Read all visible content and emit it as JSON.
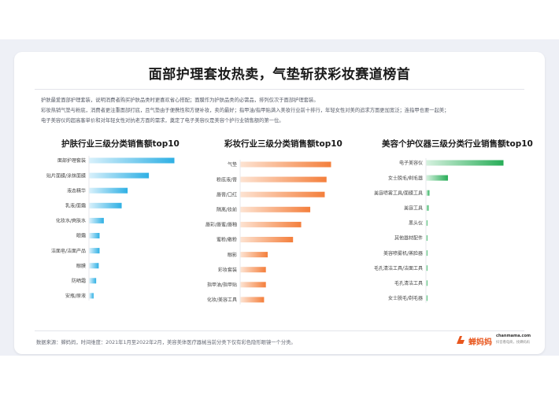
{
  "title": "面部护理套妆热卖，气垫斩获彩妆赛道榜首",
  "description": [
    "护肤最爱面部护理套装，说明消费者购买护肤品类时更喜欢省心搭配；面膜作为护肤品类的必需品，排列仅次于面部护理套装。",
    "彩妆热销气垫与粉底，消费者更注重面部打底，且气垫由于便携性和方便补妆，卖的最好；指甲油/指甲贴满入美妆行业前十排行，年轻女性对美的追求方面更加宽泛；连指甲也要一起美；",
    "电子美容仪的超高客单价和对年轻女性对抗老方面的需求，奠定了电子美容仪是美容个护行业销售额的第一位。"
  ],
  "source_note": "数据来源：蝉妈妈，时间维度：2021年1月至2022年2月，美容美体医疗器械当前分类下仅有彩色隐形眼镜一个分类。",
  "logo": {
    "name": "蝉妈妈",
    "site": "chanmama.com",
    "tagline": "抖音看电商，找蝉妈妈",
    "color": "#e8561d"
  },
  "chart_data": [
    {
      "type": "bar",
      "orientation": "horizontal",
      "title": "护肤行业三级分类销售额top10",
      "color": "#3fb8e6",
      "categories": [
        "面部护理套装",
        "贴片面膜/涂抹面膜",
        "液态精华",
        "乳液/面霜",
        "化妆水/爽肤水",
        "眼霜",
        "洁面皂/洁面产品",
        "眼膜",
        "防晒霜",
        "安瓶/原液"
      ],
      "values": [
        100,
        70,
        45,
        38,
        17,
        12,
        12,
        11,
        8,
        5
      ],
      "unit": "relative"
    },
    {
      "type": "bar",
      "orientation": "horizontal",
      "title": "彩妆行业三级分类销售额top10",
      "color": "#f58a4b",
      "categories": [
        "气垫",
        "粉底液/膏",
        "唇膏/口红",
        "隔离/妆前",
        "唇彩/唇蜜/唇釉",
        "蜜粉/散粉",
        "眼影",
        "彩妆套装",
        "指甲油/指甲贴",
        "化妆/美容工具"
      ],
      "values": [
        100,
        95,
        93,
        77,
        67,
        58,
        30,
        28,
        28,
        26
      ],
      "unit": "relative"
    },
    {
      "type": "bar",
      "orientation": "horizontal",
      "title": "美容个护仪器三级分类行业销售额top10",
      "color": "#2db35d",
      "categories": [
        "电子美容仪",
        "女士脱毛/剃毛器",
        "美容喷雾工具/面膜工具",
        "美容工具",
        "黑头仪",
        "其他器材配件",
        "美容喷雾机/蒸脸器",
        "毛孔清洁工具/洁面工具",
        "毛孔清洁工具",
        "女士脱毛/剃毛器"
      ],
      "values": [
        100,
        28,
        4,
        3,
        1,
        0.5,
        0.5,
        0.3,
        0.3,
        0.2
      ],
      "unit": "relative"
    }
  ]
}
